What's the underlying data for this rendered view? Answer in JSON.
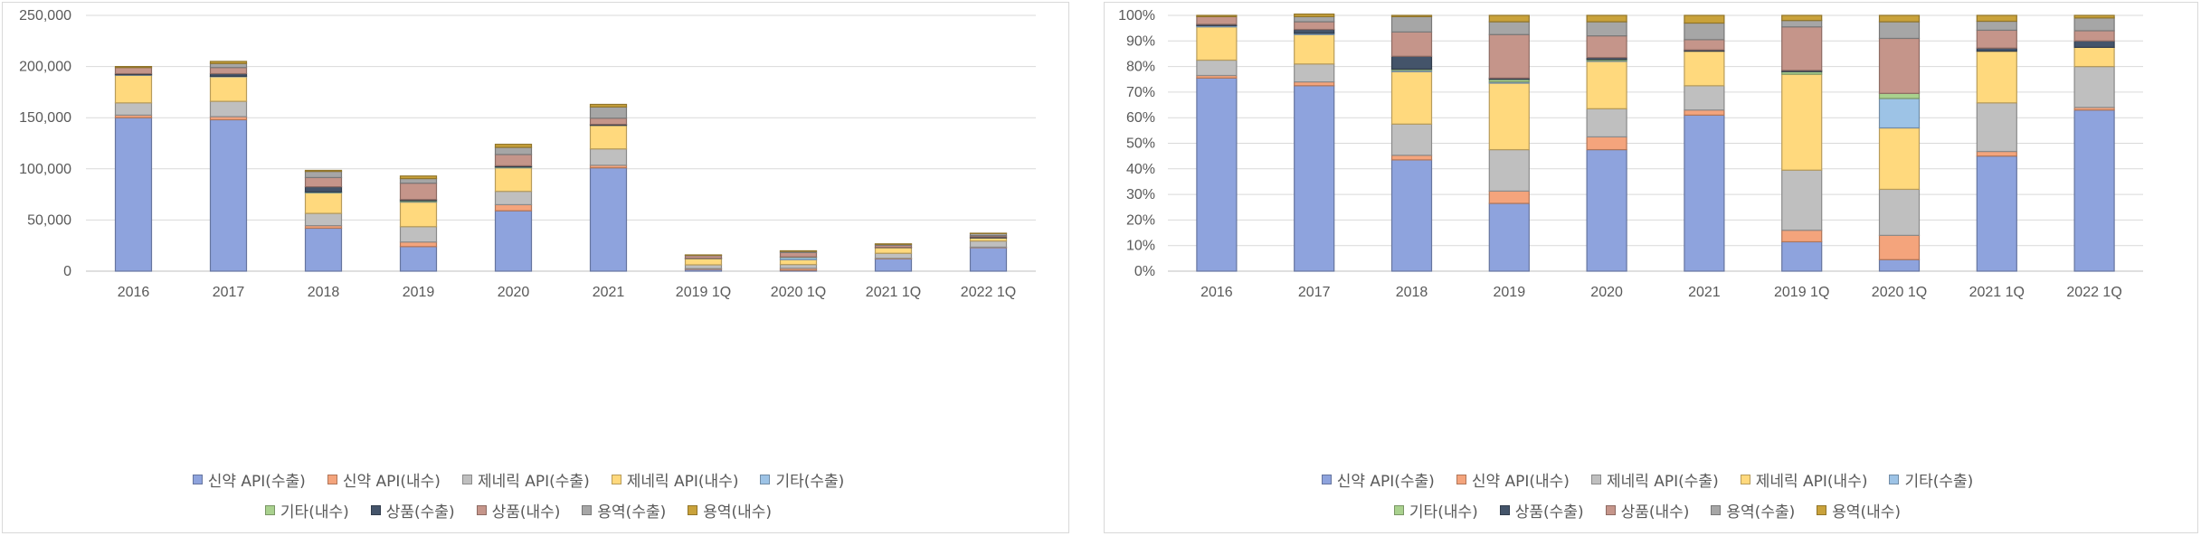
{
  "colors": {
    "new_api_export": "#8ea3dd",
    "new_api_domestic": "#f4a47c",
    "generic_api_export": "#bfbfbf",
    "generic_api_domestic": "#ffd97d",
    "other_export": "#9dc3e6",
    "other_domestic": "#a9d18e",
    "goods_export": "#44546a",
    "goods_domestic": "#c5958a",
    "service_export": "#a6a6a6",
    "service_domestic": "#c9a23b"
  },
  "chart_data": [
    {
      "type": "bar",
      "stacked": true,
      "categories": [
        "2016",
        "2017",
        "2018",
        "2019",
        "2020",
        "2021",
        "2019 1Q",
        "2020 1Q",
        "2021 1Q",
        "2022 1Q"
      ],
      "ylim": [
        0,
        250000
      ],
      "yticks": [
        "0",
        "50,000",
        "100,000",
        "150,000",
        "200,000",
        "250,000"
      ],
      "ytick_values": [
        0,
        50000,
        100000,
        150000,
        200000,
        250000
      ],
      "grid": true,
      "legend": "bottom",
      "series": [
        {
          "name": "신약 API(수출)",
          "color_key": "new_api_export",
          "values": [
            150000,
            148000,
            42000,
            24000,
            59000,
            101000,
            1800,
            900,
            12000,
            23000
          ]
        },
        {
          "name": "신약 API(내수)",
          "color_key": "new_api_domestic",
          "values": [
            2500,
            3000,
            2500,
            4500,
            6000,
            2500,
            700,
            1900,
            500,
            500
          ]
        },
        {
          "name": "제네릭 API(수출)",
          "color_key": "generic_api_export",
          "values": [
            12000,
            15000,
            12000,
            15000,
            13000,
            16000,
            3700,
            3700,
            5000,
            6000
          ]
        },
        {
          "name": "제네릭 API(내수)",
          "color_key": "generic_api_domestic",
          "values": [
            27000,
            24000,
            20000,
            24000,
            23000,
            23000,
            6000,
            4700,
            5500,
            3000
          ]
        },
        {
          "name": "기타(수출)",
          "color_key": "other_export",
          "values": [
            500,
            500,
            500,
            500,
            500,
            0,
            0,
            2300,
            0,
            0
          ]
        },
        {
          "name": "기타(내수)",
          "color_key": "other_domestic",
          "values": [
            0,
            0,
            500,
            1000,
            500,
            0,
            200,
            400,
            0,
            0
          ]
        },
        {
          "name": "상품(수출)",
          "color_key": "goods_export",
          "values": [
            1000,
            2500,
            5000,
            1000,
            1000,
            1000,
            100,
            0,
            300,
            1000
          ]
        },
        {
          "name": "상품(내수)",
          "color_key": "goods_domestic",
          "values": [
            6000,
            6000,
            9000,
            16000,
            11000,
            6000,
            2700,
            4300,
            2000,
            1300
          ]
        },
        {
          "name": "용역(수출)",
          "color_key": "service_export",
          "values": [
            0,
            4000,
            6000,
            4500,
            7000,
            11000,
            400,
            1200,
            900,
            2000
          ]
        },
        {
          "name": "용역(내수)",
          "color_key": "service_domestic",
          "values": [
            1000,
            2000,
            1000,
            2500,
            3000,
            2500,
            300,
            500,
            500,
            300
          ]
        }
      ]
    },
    {
      "type": "bar",
      "stacked": true,
      "percent": true,
      "categories": [
        "2016",
        "2017",
        "2018",
        "2019",
        "2020",
        "2021",
        "2019 1Q",
        "2020 1Q",
        "2021 1Q",
        "2022 1Q"
      ],
      "ylim": [
        0,
        100
      ],
      "yticks": [
        "0%",
        "10%",
        "20%",
        "30%",
        "40%",
        "50%",
        "60%",
        "70%",
        "80%",
        "90%",
        "100%"
      ],
      "ytick_values": [
        0,
        10,
        20,
        30,
        40,
        50,
        60,
        70,
        80,
        90,
        100
      ],
      "grid": true,
      "legend": "bottom",
      "series": [
        {
          "name": "신약 API(수출)",
          "color_key": "new_api_export",
          "values": [
            75.5,
            72.5,
            43.5,
            26.5,
            47.5,
            61,
            11.5,
            4.5,
            45,
            63
          ]
        },
        {
          "name": "신약 API(내수)",
          "color_key": "new_api_domestic",
          "values": [
            1,
            1.5,
            1.8,
            4.8,
            5,
            2,
            4.5,
            9.5,
            1.8,
            1
          ]
        },
        {
          "name": "제네릭 API(수출)",
          "color_key": "generic_api_export",
          "values": [
            6,
            7,
            12.2,
            16.2,
            11,
            9.5,
            23.5,
            18,
            19,
            16
          ]
        },
        {
          "name": "제네릭 API(내수)",
          "color_key": "generic_api_domestic",
          "values": [
            13,
            11.5,
            20.5,
            26,
            18.5,
            13.5,
            37.5,
            24,
            20.2,
            7.5
          ]
        },
        {
          "name": "기타(수출)",
          "color_key": "other_export",
          "values": [
            0.5,
            0.5,
            0.5,
            0.5,
            0.3,
            0,
            0,
            11.5,
            0,
            0
          ]
        },
        {
          "name": "기타(내수)",
          "color_key": "other_domestic",
          "values": [
            0,
            0,
            0.5,
            1,
            0.5,
            0,
            1,
            2,
            0,
            0
          ]
        },
        {
          "name": "상품(수출)",
          "color_key": "goods_export",
          "values": [
            0.5,
            1.5,
            5,
            0.5,
            0.7,
            0.5,
            0.5,
            0,
            1.2,
            2.5
          ]
        },
        {
          "name": "상품(내수)",
          "color_key": "goods_domestic",
          "values": [
            3,
            3,
            9.5,
            17,
            8.5,
            4,
            17,
            21.5,
            7,
            4
          ]
        },
        {
          "name": "용역(수출)",
          "color_key": "service_export",
          "values": [
            0,
            2,
            6,
            5,
            5.5,
            6.5,
            2.5,
            6.5,
            3.5,
            5
          ]
        },
        {
          "name": "용역(내수)",
          "color_key": "service_domestic",
          "values": [
            0.5,
            1,
            0.5,
            2.5,
            2.5,
            3,
            2,
            2.5,
            2.3,
            1
          ]
        }
      ]
    }
  ]
}
